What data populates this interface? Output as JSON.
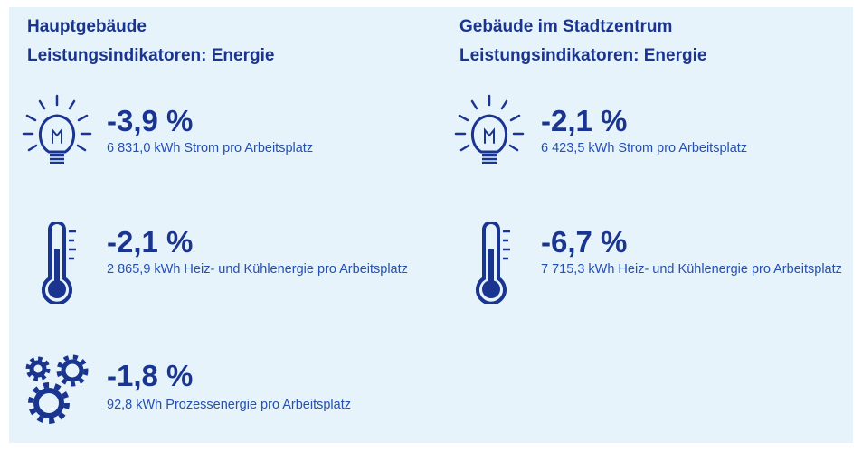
{
  "columns": [
    {
      "building": "Hauptgebäude",
      "subtitle": "Leistungsindikatoren: Energie",
      "items": [
        {
          "value": "-3,9 %",
          "description": "6 831,0 kWh Strom pro Arbeitsplatz"
        },
        {
          "value": "-2,1 %",
          "description": "2 865,9 kWh Heiz- und Kühlenergie pro Arbeitsplatz"
        },
        {
          "value": "-1,8 %",
          "description": "92,8 kWh Prozessenergie pro Arbeitsplatz"
        }
      ]
    },
    {
      "building": "Gebäude im Stadtzentrum",
      "subtitle": "Leistungsindikatoren: Energie",
      "items": [
        {
          "value": "-2,1 %",
          "description": "6 423,5 kWh Strom pro Arbeitsplatz"
        },
        {
          "value": "-6,7 %",
          "description": "7 715,3 kWh Heiz- und Kühlenergie pro Arbeitsplatz"
        }
      ]
    }
  ]
}
